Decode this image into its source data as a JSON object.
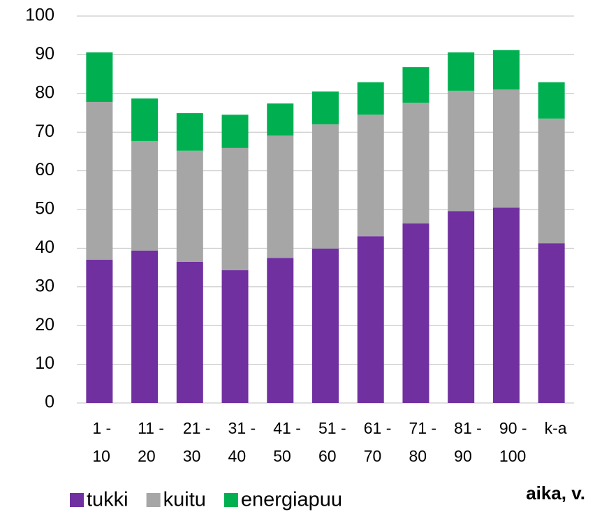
{
  "chart_data": {
    "type": "stacked_bar",
    "xlabel": "aika, v.",
    "categories": [
      [
        "1 -",
        "10"
      ],
      [
        "11 -",
        "20"
      ],
      [
        "21 -",
        "30"
      ],
      [
        "31 -",
        "40"
      ],
      [
        "41 -",
        "50"
      ],
      [
        "51 -",
        "60"
      ],
      [
        "61 -",
        "70"
      ],
      [
        "71 -",
        "80"
      ],
      [
        "81 -",
        "90"
      ],
      [
        "90 -",
        "100"
      ],
      [
        "k-a"
      ]
    ],
    "series": [
      {
        "name": "tukki",
        "color": "#7030a0",
        "values": [
          37.0,
          39.4,
          36.5,
          34.3,
          37.5,
          39.9,
          43.1,
          46.4,
          49.6,
          50.5,
          41.3
        ]
      },
      {
        "name": "kuitu",
        "color": "#a6a6a6",
        "values": [
          40.8,
          28.3,
          28.7,
          31.6,
          31.6,
          32.1,
          31.4,
          31.2,
          31.1,
          30.5,
          32.2
        ]
      },
      {
        "name": "energiapuu",
        "color": "#00b050",
        "values": [
          12.8,
          11.0,
          9.7,
          8.6,
          8.3,
          8.5,
          8.4,
          9.2,
          9.9,
          10.2,
          9.4
        ]
      }
    ],
    "ylim": [
      0,
      100
    ],
    "yticks": [
      0,
      10,
      20,
      30,
      40,
      50,
      60,
      70,
      80,
      90,
      100
    ],
    "grid": true,
    "legend": "bottom-left"
  }
}
